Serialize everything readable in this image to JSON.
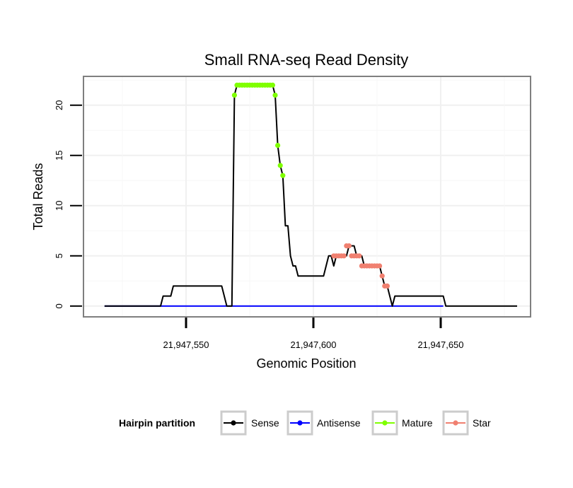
{
  "chart_data": {
    "type": "line",
    "title": "Small RNA-seq Read Density",
    "xlabel": "Genomic Position",
    "ylabel": "Total Reads",
    "xlim": [
      21947510,
      21947685
    ],
    "ylim": [
      -1,
      22.8
    ],
    "x_ticks": [
      21947550,
      21947600,
      21947650
    ],
    "x_tick_labels": [
      "21,947,550",
      "21,947,600",
      "21,947,650"
    ],
    "y_ticks": [
      0,
      5,
      10,
      15,
      20
    ],
    "y_tick_labels": [
      "0",
      "5",
      "10",
      "15",
      "20"
    ],
    "grid": true,
    "legend": {
      "title": "Hairpin partition",
      "placement": "bottom",
      "entries": [
        {
          "name": "Sense",
          "color": "#000000"
        },
        {
          "name": "Antisense",
          "color": "#0000ff"
        },
        {
          "name": "Mature",
          "color": "#7fff00"
        },
        {
          "name": "Star",
          "color": "#f08070"
        }
      ]
    },
    "series": [
      {
        "name": "Sense",
        "color": "#000000",
        "x": [
          21947518,
          21947540,
          21947541,
          21947544,
          21947545,
          21947564,
          21947566,
          21947568,
          21947569,
          21947570,
          21947584,
          21947585,
          21947586,
          21947587,
          21947588,
          21947589,
          21947590,
          21947591,
          21947592,
          21947593,
          21947594,
          21947595,
          21947596,
          21947604,
          21947606,
          21947607,
          21947608,
          21947609,
          21947610,
          21947613,
          21947614,
          21947616,
          21947617,
          21947619,
          21947620,
          21947626,
          21947627,
          21947628,
          21947629,
          21947630,
          21947631,
          21947632,
          21947651,
          21947652,
          21947680
        ],
        "y": [
          0,
          0,
          1,
          1,
          2,
          2,
          0,
          0,
          21,
          22,
          22,
          21,
          16,
          14,
          13,
          8,
          8,
          5,
          4,
          4,
          3,
          3,
          3,
          3,
          5,
          5,
          4,
          5,
          5,
          5,
          6,
          6,
          5,
          5,
          4,
          4,
          3,
          2,
          2,
          1,
          0,
          1,
          1,
          0,
          0
        ]
      },
      {
        "name": "Antisense",
        "color": "#0000ff",
        "x": [
          21947518,
          21947651
        ],
        "y": [
          0,
          0
        ]
      },
      {
        "name": "Mature",
        "color": "#7fff00",
        "x": [
          21947569,
          21947570,
          21947571,
          21947572,
          21947573,
          21947574,
          21947575,
          21947576,
          21947577,
          21947578,
          21947579,
          21947580,
          21947581,
          21947582,
          21947583,
          21947584,
          21947585,
          21947586,
          21947587,
          21947588
        ],
        "y": [
          21,
          22,
          22,
          22,
          22,
          22,
          22,
          22,
          22,
          22,
          22,
          22,
          22,
          22,
          22,
          22,
          21,
          16,
          14,
          13
        ]
      },
      {
        "name": "Star",
        "color": "#f08070",
        "x": [
          21947608,
          21947609,
          21947610,
          21947611,
          21947612,
          21947613,
          21947614,
          21947615,
          21947616,
          21947617,
          21947618,
          21947619,
          21947620,
          21947621,
          21947622,
          21947623,
          21947624,
          21947625,
          21947626,
          21947627,
          21947628,
          21947629
        ],
        "y": [
          5,
          5,
          5,
          5,
          5,
          6,
          6,
          5,
          5,
          5,
          5,
          4,
          4,
          4,
          4,
          4,
          4,
          4,
          4,
          3,
          2,
          2
        ]
      }
    ]
  }
}
